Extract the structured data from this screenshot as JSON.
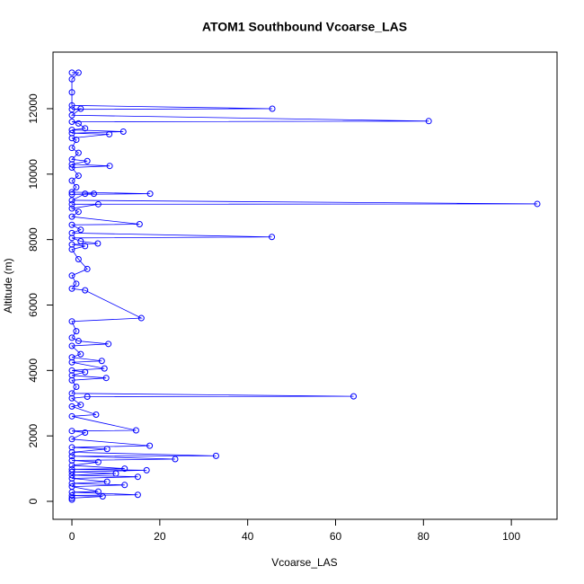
{
  "chart_data": {
    "type": "line",
    "title": "ATOM1 Southbound Vcoarse_LAS",
    "x_label": "Vcoarse_LAS",
    "y_label": "Altitude (m)",
    "color": "#0000ff",
    "x": [
      0,
      1.5,
      0,
      0,
      0,
      45.6,
      0,
      2,
      0,
      81.2,
      0,
      1.5,
      3,
      0,
      11.7,
      0,
      8.5,
      0,
      1,
      0,
      1.5,
      0,
      3.5,
      0,
      8.6,
      0,
      1.5,
      0,
      1,
      0,
      17.8,
      0,
      5,
      3,
      0,
      105.9,
      0,
      6,
      0,
      1.5,
      0,
      15.4,
      0,
      2,
      0,
      45.5,
      0,
      2,
      5.9,
      0,
      3,
      0,
      1.5,
      3.5,
      0,
      1,
      0,
      3,
      15.8,
      0,
      1,
      0,
      1.5,
      8.3,
      0,
      2,
      0,
      6.8,
      0,
      7.4,
      0,
      3,
      0,
      7.8,
      0,
      1,
      0,
      64.1,
      3.5,
      0,
      2,
      0,
      5.5,
      0,
      14.6,
      0,
      3,
      0,
      17.7,
      0,
      8,
      0,
      32.8,
      0,
      23.5,
      0,
      6,
      0,
      12,
      0,
      17,
      0,
      10,
      0,
      15,
      0,
      8,
      0,
      12,
      0,
      6,
      0,
      15,
      0,
      7,
      0,
      0
    ],
    "values": [
      13100,
      13100,
      12900,
      12500,
      12100,
      12000,
      11980,
      12000,
      11800,
      11620,
      11600,
      11550,
      11400,
      11350,
      11300,
      11250,
      11220,
      11100,
      11050,
      10800,
      10650,
      10450,
      10400,
      10300,
      10250,
      10200,
      9950,
      9800,
      9600,
      9450,
      9400,
      9380,
      9400,
      9400,
      9200,
      9090,
      9080,
      9080,
      8950,
      8850,
      8700,
      8470,
      8450,
      8300,
      8200,
      8080,
      8050,
      7950,
      7880,
      7850,
      7800,
      7700,
      7400,
      7100,
      6900,
      6650,
      6500,
      6450,
      5600,
      5500,
      5200,
      5000,
      4900,
      4810,
      4750,
      4500,
      4400,
      4290,
      4250,
      4060,
      4000,
      3950,
      3850,
      3770,
      3700,
      3500,
      3300,
      3210,
      3200,
      3150,
      2950,
      2900,
      2650,
      2600,
      2170,
      2150,
      2100,
      1900,
      1700,
      1650,
      1600,
      1500,
      1390,
      1380,
      1290,
      1250,
      1200,
      1100,
      1000,
      980,
      950,
      900,
      850,
      800,
      750,
      700,
      600,
      550,
      500,
      450,
      300,
      280,
      200,
      180,
      150,
      100,
      50
    ],
    "xlim": [
      -4.3,
      110.4
    ],
    "xticks": [
      0,
      20,
      40,
      60,
      80,
      100
    ],
    "ylim": [
      -549,
      13729
    ],
    "yticks": [
      0,
      2000,
      4000,
      6000,
      8000,
      10000,
      12000
    ]
  }
}
